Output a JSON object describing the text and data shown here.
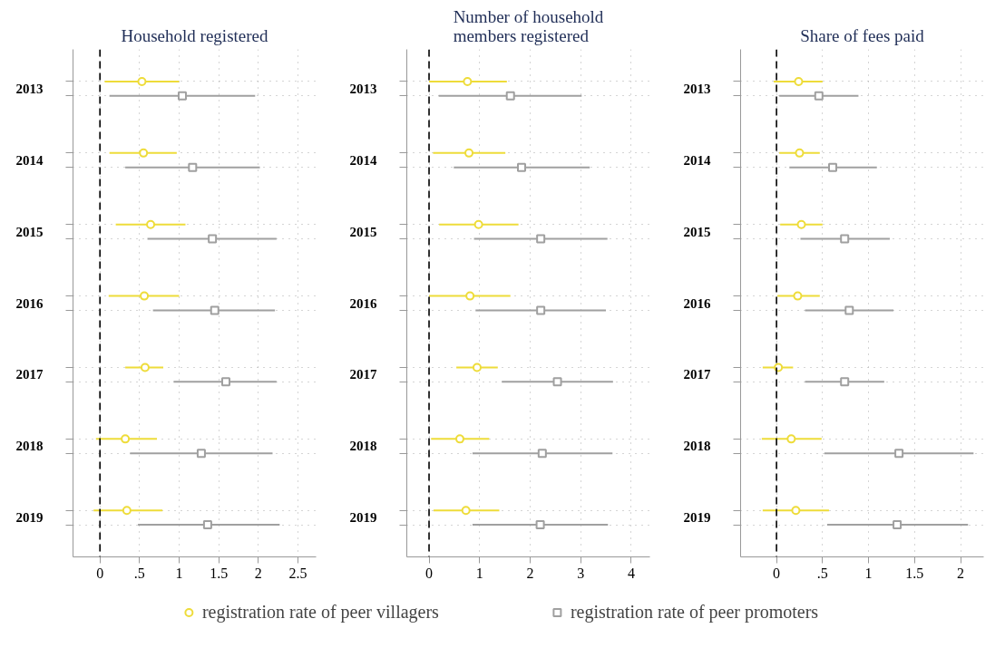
{
  "chart_data": [
    {
      "type": "scatter",
      "title": "Household registered",
      "orientation": "horizontal",
      "categories": [
        "2013",
        "2014",
        "2015",
        "2016",
        "2017",
        "2018",
        "2019"
      ],
      "xlim": [
        -0.34,
        2.73
      ],
      "xticks": [
        0,
        {
          "value": 0.5,
          "label": ".5"
        },
        1,
        1.5,
        2,
        2.5
      ],
      "grid": true,
      "legend": "bottom",
      "ref_lines": [
        {
          "axis": "x",
          "value": 0,
          "color": "#000000",
          "line_style": "dashed"
        }
      ],
      "series": [
        {
          "name": "registration rate of peer villagers",
          "color": "#eedc3a",
          "marker": "circle",
          "values": [
            0.53,
            0.55,
            0.64,
            0.56,
            0.57,
            0.32,
            0.34
          ],
          "errors": [
            [
              0.06,
              1.0
            ],
            [
              0.12,
              0.97
            ],
            [
              0.2,
              1.08
            ],
            [
              0.11,
              1.0
            ],
            [
              0.32,
              0.8
            ],
            [
              -0.05,
              0.72
            ],
            [
              -0.08,
              0.79
            ]
          ]
        },
        {
          "name": "registration rate of peer promoters",
          "color": "#a0a0a0",
          "marker": "square",
          "values": [
            1.04,
            1.17,
            1.42,
            1.45,
            1.59,
            1.28,
            1.36
          ],
          "errors": [
            [
              0.12,
              1.96
            ],
            [
              0.32,
              2.02
            ],
            [
              0.6,
              2.23
            ],
            [
              0.67,
              2.21
            ],
            [
              0.93,
              2.23
            ],
            [
              0.38,
              2.18
            ],
            [
              0.48,
              2.27
            ]
          ]
        }
      ]
    },
    {
      "type": "scatter",
      "title": "Number of household\nmembers registered",
      "orientation": "horizontal",
      "categories": [
        "2013",
        "2014",
        "2015",
        "2016",
        "2017",
        "2018",
        "2019"
      ],
      "xlim": [
        -0.44,
        4.37
      ],
      "xticks": [
        0,
        1,
        2,
        3,
        4
      ],
      "grid": true,
      "ref_lines": [
        {
          "axis": "x",
          "value": 0,
          "color": "#000000",
          "line_style": "dashed"
        }
      ],
      "series": [
        {
          "color": "#eedc3a",
          "marker": "circle",
          "values": [
            0.76,
            0.79,
            0.98,
            0.81,
            0.95,
            0.61,
            0.73
          ],
          "errors": [
            [
              0.0,
              1.54
            ],
            [
              0.08,
              1.51
            ],
            [
              0.2,
              1.77
            ],
            [
              0.0,
              1.61
            ],
            [
              0.54,
              1.36
            ],
            [
              0.04,
              1.19
            ],
            [
              0.09,
              1.39
            ]
          ]
        },
        {
          "color": "#a0a0a0",
          "marker": "square",
          "values": [
            1.61,
            1.83,
            2.21,
            2.21,
            2.54,
            2.24,
            2.2
          ],
          "errors": [
            [
              0.19,
              3.02
            ],
            [
              0.49,
              3.18
            ],
            [
              0.89,
              3.53
            ],
            [
              0.92,
              3.5
            ],
            [
              1.44,
              3.64
            ],
            [
              0.86,
              3.63
            ],
            [
              0.86,
              3.54
            ]
          ]
        }
      ]
    },
    {
      "type": "scatter",
      "title": "Share of fees paid",
      "orientation": "horizontal",
      "categories": [
        "2013",
        "2014",
        "2015",
        "2016",
        "2017",
        "2018",
        "2019"
      ],
      "xlim": [
        -0.39,
        2.25
      ],
      "xticks": [
        0,
        {
          "value": 0.5,
          "label": ".5"
        },
        1,
        1.5,
        2
      ],
      "grid": true,
      "ref_lines": [
        {
          "axis": "x",
          "value": 0,
          "color": "#000000",
          "line_style": "dashed"
        }
      ],
      "series": [
        {
          "color": "#eedc3a",
          "marker": "circle",
          "values": [
            0.24,
            0.25,
            0.27,
            0.23,
            0.02,
            0.16,
            0.21
          ],
          "errors": [
            [
              -0.03,
              0.5
            ],
            [
              0.03,
              0.47
            ],
            [
              0.04,
              0.5
            ],
            [
              0.01,
              0.47
            ],
            [
              -0.15,
              0.18
            ],
            [
              -0.16,
              0.49
            ],
            [
              -0.15,
              0.57
            ]
          ]
        },
        {
          "color": "#a0a0a0",
          "marker": "square",
          "values": [
            0.46,
            0.61,
            0.74,
            0.79,
            0.74,
            1.33,
            1.31
          ],
          "errors": [
            [
              0.03,
              0.89
            ],
            [
              0.14,
              1.09
            ],
            [
              0.26,
              1.23
            ],
            [
              0.31,
              1.27
            ],
            [
              0.31,
              1.17
            ],
            [
              0.52,
              2.14
            ],
            [
              0.55,
              2.08
            ]
          ]
        }
      ]
    }
  ]
}
